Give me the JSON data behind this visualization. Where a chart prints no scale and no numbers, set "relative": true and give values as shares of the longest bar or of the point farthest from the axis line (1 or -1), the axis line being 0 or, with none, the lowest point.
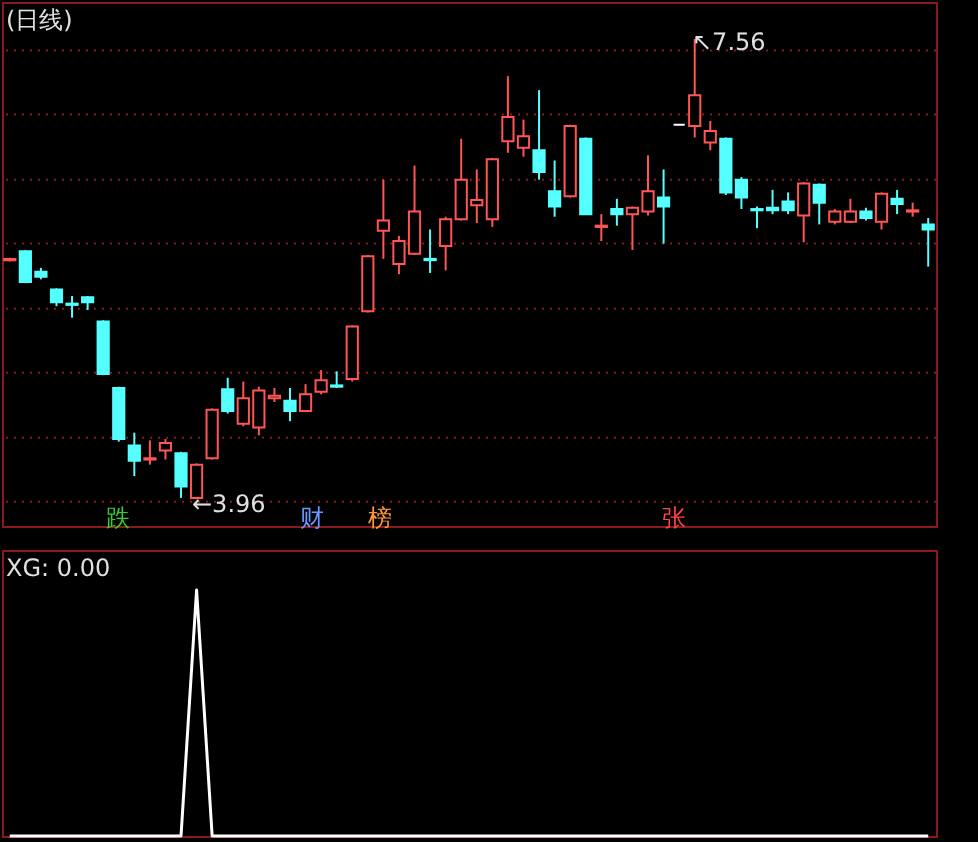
{
  "chart_data": [
    {
      "type": "candlestick",
      "title": "(日线)",
      "categories": [
        null,
        null,
        null,
        null,
        null,
        null,
        null,
        null,
        null,
        null,
        null,
        null,
        null,
        null,
        null,
        null,
        null,
        null,
        null,
        null,
        null,
        null,
        null,
        null,
        null,
        null,
        null,
        null,
        null,
        null,
        null,
        null,
        null,
        null,
        null,
        null,
        null,
        null,
        null,
        null,
        null,
        null,
        null,
        null,
        null,
        null,
        null,
        null,
        null,
        null,
        null,
        null,
        null,
        null,
        null,
        null,
        null,
        null,
        null,
        null
      ],
      "ohlc": [
        [
          5.83,
          5.85,
          5.82,
          5.84
        ],
        [
          5.9,
          5.91,
          5.65,
          5.66
        ],
        [
          5.74,
          5.77,
          5.68,
          5.7
        ],
        [
          5.6,
          5.61,
          5.47,
          5.5
        ],
        [
          5.49,
          5.55,
          5.38,
          5.48
        ],
        [
          5.54,
          5.55,
          5.44,
          5.5
        ],
        [
          5.35,
          5.36,
          4.93,
          4.94
        ],
        [
          4.83,
          4.84,
          4.41,
          4.43
        ],
        [
          4.38,
          4.48,
          4.14,
          4.26
        ],
        [
          4.27,
          4.42,
          4.23,
          4.28
        ],
        [
          4.34,
          4.43,
          4.27,
          4.4
        ],
        [
          4.32,
          4.33,
          3.97,
          4.06
        ],
        [
          3.97,
          4.24,
          3.96,
          4.23
        ],
        [
          4.28,
          4.67,
          4.27,
          4.66
        ],
        [
          4.82,
          4.91,
          4.63,
          4.65
        ],
        [
          4.55,
          4.88,
          4.53,
          4.75
        ],
        [
          4.52,
          4.84,
          4.46,
          4.81
        ],
        [
          4.75,
          4.83,
          4.72,
          4.77
        ],
        [
          4.73,
          4.83,
          4.57,
          4.65
        ],
        [
          4.65,
          4.86,
          4.65,
          4.78
        ],
        [
          4.8,
          4.97,
          4.78,
          4.89
        ],
        [
          4.85,
          4.96,
          4.83,
          4.84
        ],
        [
          4.9,
          5.32,
          4.88,
          5.31
        ],
        [
          5.43,
          5.87,
          5.42,
          5.86
        ],
        [
          6.06,
          6.46,
          5.84,
          6.14
        ],
        [
          5.8,
          6.02,
          5.72,
          5.98
        ],
        [
          5.88,
          6.57,
          5.87,
          6.21
        ],
        [
          5.84,
          6.07,
          5.73,
          5.83
        ],
        [
          5.94,
          6.17,
          5.75,
          6.15
        ],
        [
          6.15,
          6.78,
          6.14,
          6.46
        ],
        [
          6.26,
          6.54,
          6.12,
          6.3
        ],
        [
          6.15,
          6.63,
          6.09,
          6.62
        ],
        [
          6.76,
          7.27,
          6.67,
          6.95
        ],
        [
          6.71,
          6.93,
          6.64,
          6.8
        ],
        [
          6.69,
          7.16,
          6.46,
          6.52
        ],
        [
          6.37,
          6.61,
          6.17,
          6.25
        ],
        [
          6.33,
          6.89,
          6.32,
          6.88
        ],
        [
          6.78,
          6.79,
          6.19,
          6.19
        ],
        [
          6.09,
          6.19,
          5.98,
          6.1
        ],
        [
          6.23,
          6.31,
          6.1,
          6.19
        ],
        [
          6.19,
          6.25,
          5.91,
          6.24
        ],
        [
          6.21,
          6.65,
          6.18,
          6.37
        ],
        [
          6.32,
          6.54,
          5.96,
          6.25
        ],
        [
          6.89,
          6.89,
          6.89,
          6.89
        ],
        [
          6.88,
          7.56,
          6.79,
          7.12
        ],
        [
          6.75,
          6.92,
          6.69,
          6.84
        ],
        [
          6.78,
          6.79,
          6.34,
          6.36
        ],
        [
          6.46,
          6.48,
          6.23,
          6.32
        ],
        [
          6.23,
          6.25,
          6.08,
          6.22
        ],
        [
          6.24,
          6.38,
          6.19,
          6.22
        ],
        [
          6.29,
          6.36,
          6.19,
          6.22
        ],
        [
          6.18,
          6.44,
          5.97,
          6.43
        ],
        [
          6.42,
          6.43,
          6.11,
          6.28
        ],
        [
          6.13,
          6.23,
          6.11,
          6.21
        ],
        [
          6.13,
          6.31,
          6.12,
          6.21
        ],
        [
          6.21,
          6.24,
          6.14,
          6.16
        ],
        [
          6.13,
          6.36,
          6.07,
          6.35
        ],
        [
          6.31,
          6.38,
          6.19,
          6.27
        ],
        [
          6.21,
          6.28,
          6.17,
          6.22
        ],
        [
          6.11,
          6.16,
          5.78,
          6.07
        ]
      ],
      "colors": [
        "#ff5555",
        "#55ffff",
        "#55ffff",
        "#55ffff",
        "#55ffff",
        "#55ffff",
        "#55ffff",
        "#55ffff",
        "#55ffff",
        "#ff5555",
        "#ff5555",
        "#55ffff",
        "#ff5555",
        "#ff5555",
        "#55ffff",
        "#ff5555",
        "#ff5555",
        "#ff5555",
        "#55ffff",
        "#ff5555",
        "#ff5555",
        "#55ffff",
        "#ff5555",
        "#ff5555",
        "#ff5555",
        "#ff5555",
        "#ff5555",
        "#55ffff",
        "#ff5555",
        "#ff5555",
        "#ff5555",
        "#ff5555",
        "#ff5555",
        "#ff5555",
        "#55ffff",
        "#55ffff",
        "#ff5555",
        "#55ffff",
        "#ff5555",
        "#55ffff",
        "#ff5555",
        "#ff5555",
        "#55ffff",
        "#ffffff",
        "#ff5555",
        "#ff5555",
        "#55ffff",
        "#55ffff",
        "#55ffff",
        "#55ffff",
        "#55ffff",
        "#ff5555",
        "#55ffff",
        "#ff5555",
        "#ff5555",
        "#55ffff",
        "#ff5555",
        "#55ffff",
        "#ff5555",
        "#55ffff"
      ],
      "ylim": [
        3.75,
        7.85
      ],
      "yticks": [
        {
          "value": 7.47,
          "label": null
        },
        {
          "value": 6.97,
          "label": null
        },
        {
          "value": 6.46,
          "label": null
        },
        {
          "value": 5.96,
          "label": null
        },
        {
          "value": 5.45,
          "label": null
        },
        {
          "value": 4.95,
          "label": null
        },
        {
          "value": 4.44,
          "label": null
        },
        {
          "value": 3.94,
          "label": null
        }
      ],
      "grid": true,
      "tick_labels": false,
      "annotations": [
        "↖7.56",
        "←3.96",
        "跌",
        "财",
        "榜",
        "张"
      ]
    },
    {
      "type": "line",
      "title": "XG: 0.00",
      "color": "#ffffff",
      "relative": true,
      "categories": [
        null,
        null,
        null,
        null,
        null,
        null,
        null,
        null,
        null,
        null,
        null,
        null,
        null,
        null,
        null,
        null,
        null,
        null,
        null,
        null,
        null,
        null,
        null,
        null,
        null,
        null,
        null,
        null,
        null,
        null,
        null,
        null,
        null,
        null,
        null,
        null,
        null,
        null,
        null,
        null,
        null,
        null,
        null,
        null,
        null,
        null,
        null,
        null,
        null,
        null,
        null,
        null,
        null,
        null,
        null,
        null,
        null,
        null,
        null,
        null
      ],
      "values": [
        0,
        0,
        0,
        0,
        0,
        0,
        0,
        0,
        0,
        0,
        0,
        0,
        1,
        0,
        0,
        0,
        0,
        0,
        0,
        0,
        0,
        0,
        0,
        0,
        0,
        0,
        0,
        0,
        0,
        0,
        0,
        0,
        0,
        0,
        0,
        0,
        0,
        0,
        0,
        0,
        0,
        0,
        0,
        0,
        0,
        0,
        0,
        0,
        0,
        0,
        0,
        0,
        0,
        0,
        0,
        0,
        0,
        0,
        0,
        0
      ]
    }
  ]
}
